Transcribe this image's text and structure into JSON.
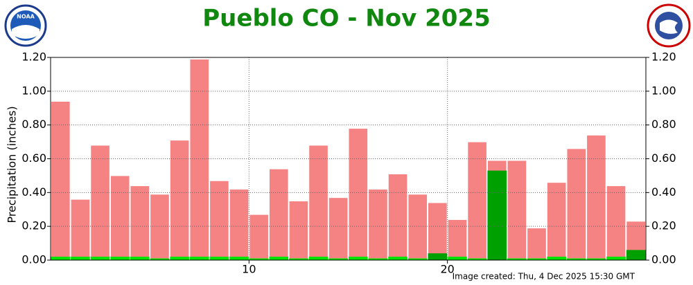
{
  "chart_data": {
    "type": "bar",
    "title": "Pueblo CO - Nov 2025",
    "ylabel": "Precipitation (inches)",
    "footer": "Image created: Thu, 4 Dec 2025 15:30 GMT",
    "logo_text": "NOAA",
    "xlim": [
      0,
      30
    ],
    "xticks": [
      10,
      20
    ],
    "ylim": [
      0,
      1.2
    ],
    "yticks": [
      {
        "value": 0,
        "label": "0.00"
      },
      {
        "value": 0.2,
        "label": "0.20"
      },
      {
        "value": 0.4,
        "label": "0.40"
      },
      {
        "value": 0.6,
        "label": "0.60"
      },
      {
        "value": 0.8,
        "label": "0.80"
      },
      {
        "value": 1.0,
        "label": "1.00"
      },
      {
        "value": 1.2,
        "label": "1.20"
      }
    ],
    "grid": true,
    "series": [
      {
        "color": "#f58383",
        "values": [
          0.94,
          0.36,
          0.68,
          0.5,
          0.44,
          0.39,
          0.71,
          1.19,
          0.47,
          0.42,
          0.27,
          0.54,
          0.35,
          0.68,
          0.37,
          0.78,
          0.42,
          0.51,
          0.39,
          0.34,
          0.24,
          0.7,
          0.59,
          0.59,
          0.19,
          0.46,
          0.66,
          0.74,
          0.44,
          0.23
        ]
      },
      {
        "color": "#00e400",
        "values": [
          0.02,
          0.02,
          0.02,
          0.02,
          0.02,
          0.01,
          0.02,
          0.02,
          0.02,
          0.02,
          0.01,
          0.02,
          0.01,
          0.02,
          0.01,
          0.02,
          0.01,
          0.02,
          0.01,
          0.01,
          0.02,
          0.01,
          0.01,
          0.01,
          0.01,
          0.02,
          0.01,
          0.01,
          0.02,
          0.01
        ]
      },
      {
        "color": "#00a000",
        "values": [
          0,
          0,
          0,
          0,
          0,
          0,
          0,
          0,
          0,
          0,
          0,
          0,
          0,
          0,
          0,
          0,
          0,
          0,
          0,
          0.04,
          0,
          0,
          0.53,
          0,
          0,
          0,
          0,
          0,
          0,
          0.06
        ]
      }
    ]
  }
}
